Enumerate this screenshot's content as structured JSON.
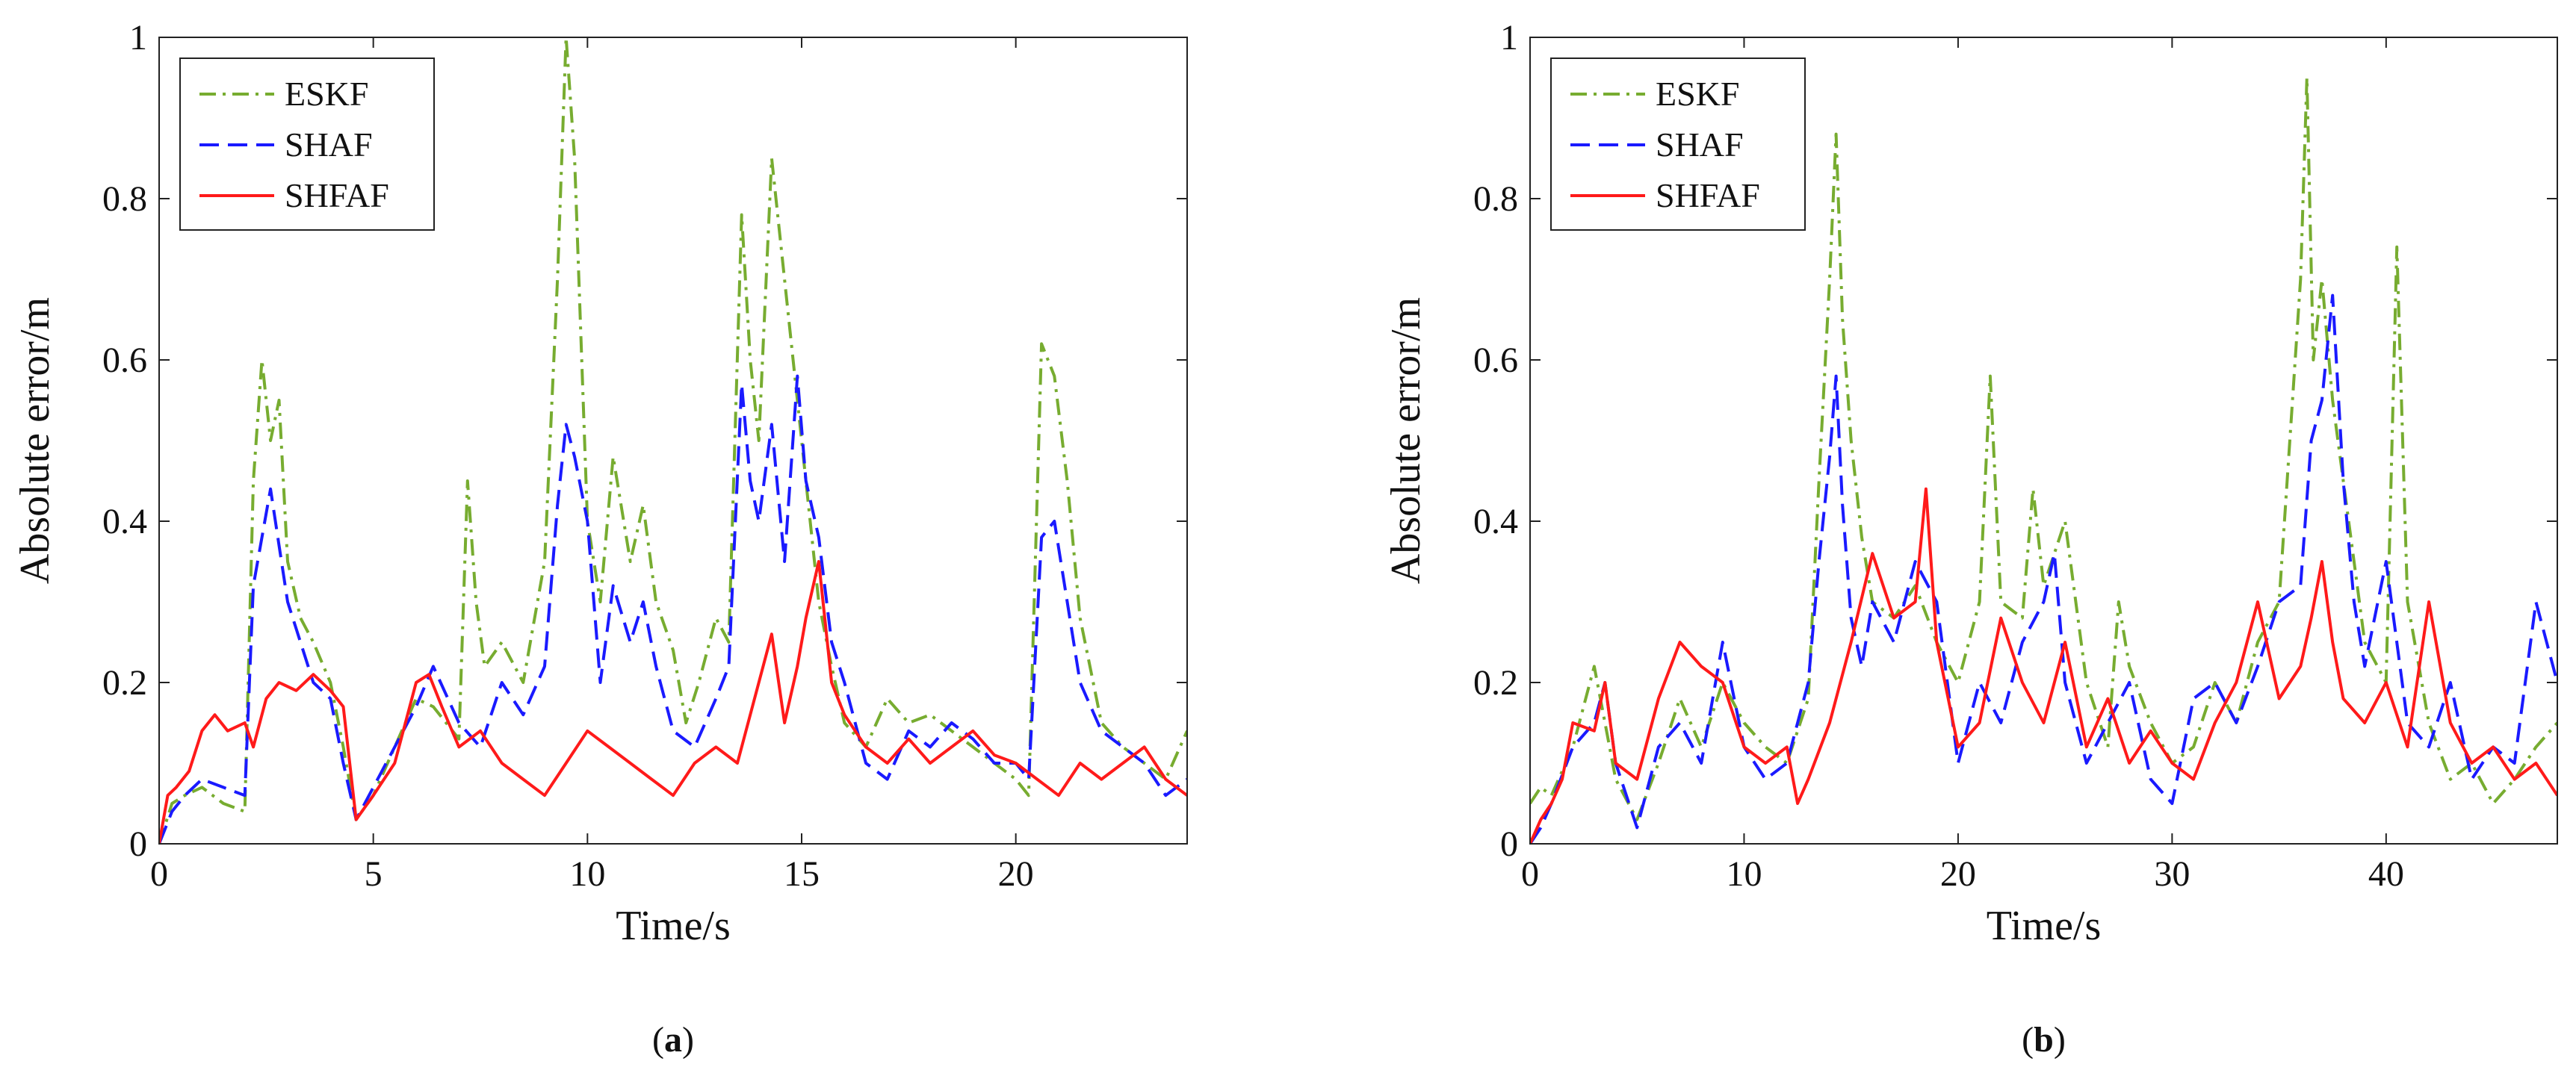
{
  "chart_data": [
    {
      "type": "line",
      "caption": {
        "open": "(",
        "letter": "a",
        "close": ")"
      },
      "xlabel": "Time/s",
      "ylabel": "Absolute error/m",
      "xlim": [
        0,
        24
      ],
      "ylim": [
        0,
        1
      ],
      "xticks": [
        0,
        5,
        10,
        15,
        20
      ],
      "yticks": [
        0,
        0.2,
        0.4,
        0.6,
        0.8,
        1
      ],
      "ytick_labels": [
        "0",
        "0.2",
        "0.4",
        "0.6",
        "0.8",
        "1"
      ],
      "legend": {
        "position": "top-left"
      },
      "series": [
        {
          "name": "ESKF",
          "color": "#77ac30",
          "style": "dashdot",
          "x": [
            0,
            0.3,
            0.6,
            1,
            1.5,
            2,
            2.2,
            2.4,
            2.6,
            2.8,
            3,
            3.3,
            3.6,
            4,
            4.3,
            4.6,
            5,
            5.5,
            6,
            6.4,
            7,
            7.2,
            7.4,
            7.6,
            8,
            8.5,
            9,
            9.3,
            9.5,
            9.7,
            10,
            10.3,
            10.6,
            11,
            11.3,
            11.6,
            12,
            12.3,
            12.6,
            13,
            13.3,
            13.6,
            13.8,
            14,
            14.3,
            14.6,
            14.9,
            15.1,
            15.4,
            15.7,
            16,
            16.5,
            17,
            17.5,
            18,
            18.5,
            19,
            19.5,
            20,
            20.3,
            20.6,
            20.9,
            21.2,
            21.5,
            22,
            22.5,
            23,
            23.5,
            24
          ],
          "y": [
            0,
            0.05,
            0.06,
            0.07,
            0.05,
            0.04,
            0.45,
            0.6,
            0.5,
            0.55,
            0.35,
            0.28,
            0.25,
            0.2,
            0.12,
            0.03,
            0.06,
            0.12,
            0.18,
            0.17,
            0.13,
            0.45,
            0.3,
            0.22,
            0.25,
            0.2,
            0.35,
            0.7,
            1.0,
            0.85,
            0.4,
            0.3,
            0.48,
            0.35,
            0.42,
            0.3,
            0.24,
            0.15,
            0.2,
            0.28,
            0.25,
            0.78,
            0.6,
            0.5,
            0.85,
            0.7,
            0.55,
            0.45,
            0.3,
            0.22,
            0.15,
            0.12,
            0.18,
            0.15,
            0.16,
            0.14,
            0.12,
            0.1,
            0.08,
            0.06,
            0.62,
            0.58,
            0.45,
            0.28,
            0.15,
            0.12,
            0.1,
            0.08,
            0.14
          ]
        },
        {
          "name": "SHAF",
          "color": "#1a1aff",
          "style": "dashed",
          "x": [
            0,
            0.3,
            0.6,
            1,
            1.5,
            2,
            2.2,
            2.4,
            2.6,
            2.8,
            3,
            3.3,
            3.6,
            4,
            4.3,
            4.6,
            5,
            5.5,
            6,
            6.4,
            7,
            7.5,
            8,
            8.5,
            9,
            9.3,
            9.5,
            9.7,
            10,
            10.3,
            10.6,
            11,
            11.3,
            11.6,
            12,
            12.5,
            13,
            13.3,
            13.6,
            13.8,
            14,
            14.3,
            14.6,
            14.9,
            15.1,
            15.4,
            15.7,
            16,
            16.5,
            17,
            17.5,
            18,
            18.5,
            19,
            19.5,
            20,
            20.3,
            20.6,
            20.9,
            21.2,
            21.5,
            22,
            22.5,
            23,
            23.5,
            24
          ],
          "y": [
            0,
            0.04,
            0.06,
            0.08,
            0.07,
            0.06,
            0.32,
            0.38,
            0.44,
            0.37,
            0.3,
            0.25,
            0.2,
            0.18,
            0.1,
            0.03,
            0.07,
            0.12,
            0.17,
            0.22,
            0.15,
            0.12,
            0.2,
            0.16,
            0.22,
            0.42,
            0.52,
            0.48,
            0.4,
            0.2,
            0.32,
            0.25,
            0.3,
            0.22,
            0.14,
            0.12,
            0.18,
            0.22,
            0.57,
            0.45,
            0.4,
            0.52,
            0.35,
            0.58,
            0.45,
            0.38,
            0.25,
            0.2,
            0.1,
            0.08,
            0.14,
            0.12,
            0.15,
            0.13,
            0.1,
            0.1,
            0.08,
            0.38,
            0.4,
            0.3,
            0.2,
            0.14,
            0.12,
            0.1,
            0.06,
            0.08
          ]
        },
        {
          "name": "SHFAF",
          "color": "#ff1a1a",
          "style": "solid",
          "x": [
            0,
            0.2,
            0.4,
            0.7,
            1,
            1.3,
            1.6,
            2,
            2.2,
            2.5,
            2.8,
            3.2,
            3.6,
            4,
            4.3,
            4.6,
            5,
            5.5,
            6,
            6.3,
            6.6,
            7,
            7.5,
            8,
            8.5,
            9,
            9.5,
            10,
            10.5,
            11,
            11.5,
            12,
            12.5,
            13,
            13.5,
            14,
            14.3,
            14.6,
            14.9,
            15.1,
            15.4,
            15.7,
            16,
            16.5,
            17,
            17.5,
            18,
            18.5,
            19,
            19.5,
            20,
            20.5,
            21,
            21.5,
            22,
            22.5,
            23,
            23.5,
            24
          ],
          "y": [
            0,
            0.06,
            0.07,
            0.09,
            0.14,
            0.16,
            0.14,
            0.15,
            0.12,
            0.18,
            0.2,
            0.19,
            0.21,
            0.19,
            0.17,
            0.03,
            0.06,
            0.1,
            0.2,
            0.21,
            0.17,
            0.12,
            0.14,
            0.1,
            0.08,
            0.06,
            0.1,
            0.14,
            0.12,
            0.1,
            0.08,
            0.06,
            0.1,
            0.12,
            0.1,
            0.2,
            0.26,
            0.15,
            0.22,
            0.28,
            0.35,
            0.2,
            0.16,
            0.12,
            0.1,
            0.13,
            0.1,
            0.12,
            0.14,
            0.11,
            0.1,
            0.08,
            0.06,
            0.1,
            0.08,
            0.1,
            0.12,
            0.08,
            0.06
          ]
        }
      ]
    },
    {
      "type": "line",
      "caption": {
        "open": "(",
        "letter": "b",
        "close": ")"
      },
      "xlabel": "Time/s",
      "ylabel": "Absolute error/m",
      "xlim": [
        0,
        48
      ],
      "ylim": [
        0,
        1
      ],
      "xticks": [
        0,
        10,
        20,
        30,
        40
      ],
      "yticks": [
        0,
        0.2,
        0.4,
        0.6,
        0.8,
        1
      ],
      "ytick_labels": [
        "0",
        "0.2",
        "0.4",
        "0.6",
        "0.8",
        "1"
      ],
      "legend": {
        "position": "top-left"
      },
      "series": [
        {
          "name": "ESKF",
          "color": "#77ac30",
          "style": "dashdot",
          "x": [
            0,
            0.5,
            1,
            2,
            3,
            3.5,
            4,
            5,
            6,
            7,
            8,
            9,
            10,
            11,
            12,
            13,
            13.5,
            14,
            14.3,
            14.6,
            15,
            15.5,
            16,
            17,
            18,
            19,
            20,
            21,
            21.5,
            22,
            23,
            23.5,
            24,
            25,
            26,
            27,
            27.5,
            28,
            29,
            30,
            31,
            32,
            33,
            34,
            35,
            36,
            36.3,
            36.6,
            37,
            37.5,
            38,
            38.5,
            39,
            40,
            40.5,
            41,
            42,
            43,
            44,
            45,
            46,
            47,
            48
          ],
          "y": [
            0.05,
            0.07,
            0.06,
            0.12,
            0.22,
            0.15,
            0.08,
            0.03,
            0.1,
            0.18,
            0.12,
            0.2,
            0.15,
            0.12,
            0.1,
            0.18,
            0.45,
            0.7,
            0.88,
            0.65,
            0.5,
            0.38,
            0.3,
            0.28,
            0.32,
            0.25,
            0.2,
            0.3,
            0.58,
            0.3,
            0.28,
            0.44,
            0.32,
            0.4,
            0.2,
            0.12,
            0.3,
            0.22,
            0.15,
            0.1,
            0.12,
            0.2,
            0.15,
            0.25,
            0.3,
            0.7,
            0.95,
            0.6,
            0.7,
            0.55,
            0.45,
            0.35,
            0.25,
            0.2,
            0.74,
            0.3,
            0.15,
            0.08,
            0.1,
            0.05,
            0.08,
            0.12,
            0.15
          ]
        },
        {
          "name": "SHAF",
          "color": "#1a1aff",
          "style": "dashed",
          "x": [
            0,
            0.5,
            1,
            2,
            3,
            3.5,
            4,
            5,
            6,
            7,
            8,
            9,
            10,
            11,
            12,
            13,
            13.5,
            14,
            14.3,
            14.6,
            15,
            15.5,
            16,
            17,
            18,
            19,
            20,
            21,
            22,
            23,
            24,
            24.5,
            25,
            26,
            27,
            28,
            29,
            30,
            31,
            32,
            33,
            34,
            35,
            36,
            36.5,
            37,
            37.5,
            38,
            38.5,
            39,
            40,
            41,
            42,
            43,
            44,
            45,
            46,
            47,
            48
          ],
          "y": [
            0,
            0.02,
            0.05,
            0.12,
            0.15,
            0.2,
            0.1,
            0.02,
            0.12,
            0.15,
            0.1,
            0.25,
            0.12,
            0.08,
            0.1,
            0.2,
            0.35,
            0.48,
            0.58,
            0.42,
            0.28,
            0.22,
            0.3,
            0.25,
            0.35,
            0.3,
            0.1,
            0.2,
            0.15,
            0.25,
            0.3,
            0.36,
            0.2,
            0.1,
            0.15,
            0.2,
            0.08,
            0.05,
            0.18,
            0.2,
            0.15,
            0.22,
            0.3,
            0.32,
            0.5,
            0.55,
            0.68,
            0.45,
            0.3,
            0.22,
            0.35,
            0.15,
            0.12,
            0.2,
            0.08,
            0.12,
            0.1,
            0.3,
            0.2
          ]
        },
        {
          "name": "SHFAF",
          "color": "#ff1a1a",
          "style": "solid",
          "x": [
            0,
            0.5,
            1,
            1.5,
            2,
            3,
            3.5,
            4,
            5,
            6,
            7,
            8,
            9,
            10,
            11,
            12,
            12.5,
            13,
            14,
            15,
            16,
            17,
            18,
            18.5,
            19,
            20,
            21,
            22,
            23,
            24,
            25,
            26,
            27,
            28,
            29,
            30,
            31,
            32,
            33,
            34,
            35,
            36,
            36.5,
            37,
            37.5,
            38,
            39,
            40,
            41,
            42,
            43,
            44,
            45,
            46,
            47,
            48
          ],
          "y": [
            0,
            0.03,
            0.05,
            0.08,
            0.15,
            0.14,
            0.2,
            0.1,
            0.08,
            0.18,
            0.25,
            0.22,
            0.2,
            0.12,
            0.1,
            0.12,
            0.05,
            0.08,
            0.15,
            0.25,
            0.36,
            0.28,
            0.3,
            0.44,
            0.25,
            0.12,
            0.15,
            0.28,
            0.2,
            0.15,
            0.25,
            0.12,
            0.18,
            0.1,
            0.14,
            0.1,
            0.08,
            0.15,
            0.2,
            0.3,
            0.18,
            0.22,
            0.28,
            0.35,
            0.25,
            0.18,
            0.15,
            0.2,
            0.12,
            0.3,
            0.15,
            0.1,
            0.12,
            0.08,
            0.1,
            0.06
          ]
        }
      ]
    }
  ]
}
